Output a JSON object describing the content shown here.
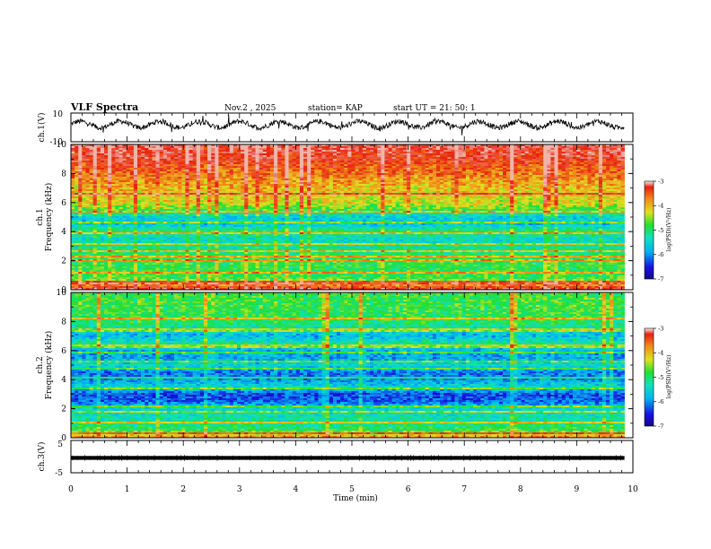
{
  "header": {
    "title": "VLF Spectra",
    "date": "Nov.2 , 2025",
    "station": "station= KAP",
    "start": "start UT = 21: 50: 1"
  },
  "colors": {
    "spectrogram_scale": [
      "#1a10c8",
      "#2a64f0",
      "#00d8ee",
      "#20e040",
      "#d8e020",
      "#f08a1a",
      "#e82010",
      "#f6e0e0"
    ]
  },
  "chart_data": [
    {
      "type": "line",
      "name": "ch.1 waveform",
      "ylabel": "ch.1(V)",
      "ylim": [
        -10,
        10
      ],
      "yticks": [
        "10",
        "-10"
      ],
      "xlim": [
        0,
        10
      ],
      "x_extent_min": 9.85,
      "mean": 2.0,
      "amplitude": 4.0
    },
    {
      "type": "heatmap",
      "name": "ch.1 spectrogram",
      "ylabel": [
        "ch.1",
        "Frequency (kHz)"
      ],
      "ylim": [
        0,
        10
      ],
      "yticks": [
        "0",
        "2",
        "4",
        "6",
        "8",
        "10"
      ],
      "xlim": [
        0,
        10
      ],
      "x_extent_min": 9.85,
      "colorbar": {
        "label": "log(PSD)(V²/Hz)",
        "ticks": [
          "-3",
          "-4",
          "-5",
          "-6",
          "-7"
        ],
        "range": [
          -7,
          -3
        ]
      },
      "level_profile_log_psd": [
        {
          "f_khz": 0.0,
          "v": -3.3
        },
        {
          "f_khz": 0.4,
          "v": -4.2
        },
        {
          "f_khz": 0.8,
          "v": -5.0
        },
        {
          "f_khz": 1.5,
          "v": -5.1
        },
        {
          "f_khz": 2.0,
          "v": -5.0
        },
        {
          "f_khz": 2.5,
          "v": -5.2
        },
        {
          "f_khz": 3.0,
          "v": -5.4
        },
        {
          "f_khz": 3.5,
          "v": -5.6
        },
        {
          "f_khz": 4.0,
          "v": -5.1
        },
        {
          "f_khz": 4.5,
          "v": -5.8
        },
        {
          "f_khz": 5.0,
          "v": -5.7
        },
        {
          "f_khz": 5.5,
          "v": -5.0
        },
        {
          "f_khz": 6.0,
          "v": -4.5
        },
        {
          "f_khz": 7.0,
          "v": -4.3
        },
        {
          "f_khz": 8.0,
          "v": -3.9
        },
        {
          "f_khz": 9.0,
          "v": -3.5
        },
        {
          "f_khz": 10.0,
          "v": -3.3
        }
      ],
      "lines_khz": [
        0.5,
        1.2,
        2.0,
        2.3,
        2.7,
        3.2,
        3.9,
        4.6,
        5.4,
        6.6
      ]
    },
    {
      "type": "heatmap",
      "name": "ch.2 spectrogram",
      "ylabel": [
        "ch.2",
        "Frequency (kHz)"
      ],
      "ylim": [
        0,
        10
      ],
      "yticks": [
        "0",
        "2",
        "4",
        "6",
        "8",
        "10"
      ],
      "xlim": [
        0,
        10
      ],
      "x_extent_min": 9.85,
      "colorbar": {
        "label": "log(PSD)(V²/Hz)",
        "ticks": [
          "-3",
          "-4",
          "-5",
          "-6",
          "-7"
        ],
        "range": [
          -7,
          -3
        ]
      },
      "level_profile_log_psd": [
        {
          "f_khz": 0.0,
          "v": -4.0
        },
        {
          "f_khz": 0.5,
          "v": -5.0
        },
        {
          "f_khz": 1.0,
          "v": -5.3
        },
        {
          "f_khz": 1.5,
          "v": -5.5
        },
        {
          "f_khz": 2.0,
          "v": -5.6
        },
        {
          "f_khz": 2.5,
          "v": -6.3
        },
        {
          "f_khz": 3.0,
          "v": -6.4
        },
        {
          "f_khz": 3.5,
          "v": -5.6
        },
        {
          "f_khz": 4.0,
          "v": -6.1
        },
        {
          "f_khz": 4.5,
          "v": -6.2
        },
        {
          "f_khz": 5.0,
          "v": -5.6
        },
        {
          "f_khz": 5.5,
          "v": -6.0
        },
        {
          "f_khz": 6.0,
          "v": -5.9
        },
        {
          "f_khz": 6.5,
          "v": -5.3
        },
        {
          "f_khz": 7.0,
          "v": -5.9
        },
        {
          "f_khz": 8.0,
          "v": -5.1
        },
        {
          "f_khz": 9.0,
          "v": -5.0
        },
        {
          "f_khz": 10.0,
          "v": -5.0
        }
      ],
      "lines_khz": [
        0.3,
        1.0,
        1.8,
        2.2,
        3.4,
        4.1,
        4.7,
        5.2,
        5.9,
        6.3,
        7.4,
        8.2
      ]
    },
    {
      "type": "line",
      "name": "ch.3 waveform",
      "ylabel": "ch.3(V)",
      "ylim": [
        -5,
        5
      ],
      "yticks": [
        "5",
        "-5"
      ],
      "xlim": [
        0,
        10
      ],
      "x_extent_min": 9.85,
      "band_low": -1.0,
      "band_high": 0.2
    }
  ],
  "xaxis": {
    "label": "Time (min)",
    "ticks": [
      "0",
      "1",
      "2",
      "3",
      "4",
      "5",
      "6",
      "7",
      "8",
      "9",
      "10"
    ]
  }
}
